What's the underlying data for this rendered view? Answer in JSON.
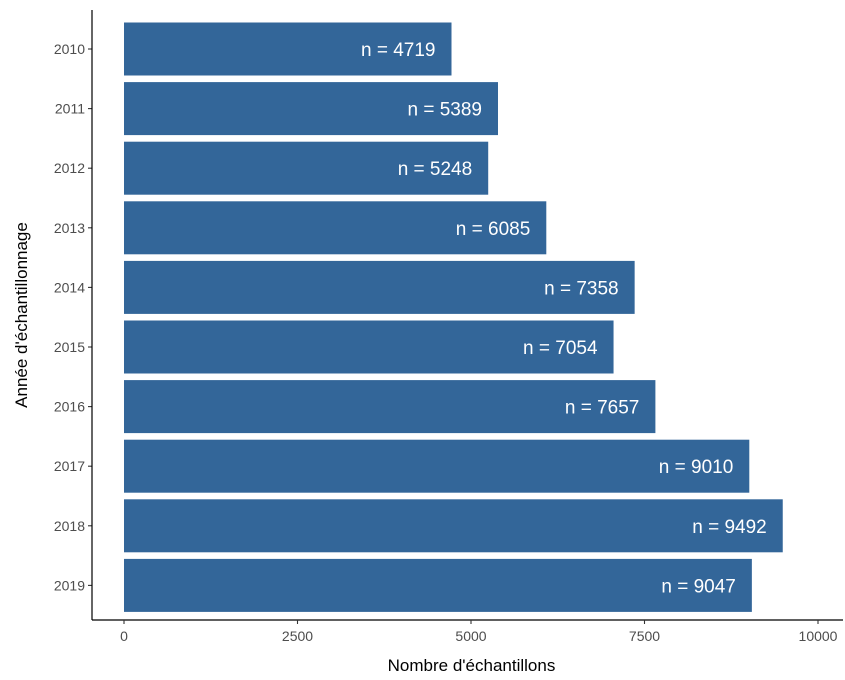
{
  "chart_data": {
    "type": "bar",
    "orientation": "horizontal",
    "categories": [
      "2010",
      "2011",
      "2012",
      "2013",
      "2014",
      "2015",
      "2016",
      "2017",
      "2018",
      "2019"
    ],
    "values": [
      4719,
      5389,
      5248,
      6085,
      7358,
      7054,
      7657,
      9010,
      9492,
      9047
    ],
    "data_labels": [
      "n =  4719",
      "n =  5389",
      "n =  5248",
      "n =  6085",
      "n =  7358",
      "n =  7054",
      "n =  7657",
      "n =  9010",
      "n =  9492",
      "n =  9047"
    ],
    "title": "",
    "xlabel": "Nombre d'échantillons",
    "ylabel": "Année d'échantillonnage",
    "xlim": [
      0,
      10000
    ],
    "x_ticks": [
      0,
      2500,
      5000,
      7500,
      10000
    ],
    "x_tick_labels": [
      "0",
      "2500",
      "5000",
      "7500",
      "10000"
    ],
    "grid": false,
    "bar_color": "#336699",
    "label_color": "#ffffff"
  }
}
